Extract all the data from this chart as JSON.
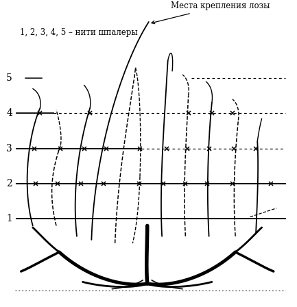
{
  "title_top": "Места крепления лозы",
  "label_series": "1, 2, 3, 4, 5 – нити шпалеры",
  "bg_color": "#ffffff",
  "line_color": "#000000",
  "wire_labels": [
    "5",
    "4",
    "3",
    "2",
    "1"
  ],
  "wire_y": [
    5.0,
    4.0,
    3.0,
    2.0,
    1.0
  ],
  "xlim": [
    0,
    10
  ],
  "ylim": [
    -1.5,
    7.2
  ],
  "figsize": [
    4.33,
    4.48
  ],
  "dpi": 100
}
